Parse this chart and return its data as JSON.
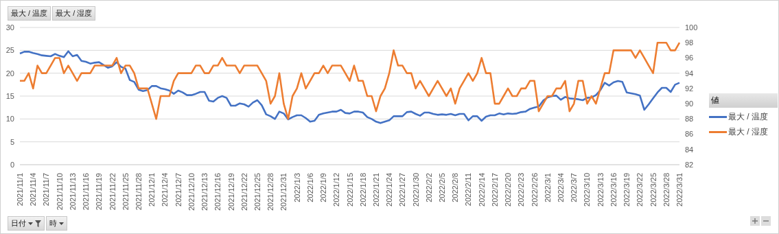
{
  "chart_data": {
    "type": "line",
    "categories": [
      "2021/11/1",
      null,
      null,
      "2021/11/4",
      null,
      null,
      "2021/11/7",
      null,
      null,
      "2021/11/10",
      null,
      null,
      "2021/11/13",
      null,
      null,
      "2021/11/16",
      null,
      null,
      "2021/11/19",
      null,
      null,
      "2021/11/22",
      null,
      null,
      "2021/11/25",
      null,
      null,
      "2021/11/28",
      null,
      null,
      "2021/12/1",
      null,
      null,
      "2021/12/4",
      null,
      null,
      "2021/12/7",
      null,
      null,
      "2021/12/10",
      null,
      null,
      "2021/12/13",
      null,
      null,
      "2021/12/16",
      null,
      null,
      "2021/12/19",
      null,
      null,
      "2021/12/22",
      null,
      null,
      "2021/12/25",
      null,
      null,
      "2021/12/28",
      null,
      null,
      "2021/12/31",
      null,
      null,
      "2022/1/3",
      null,
      null,
      "2022/1/6",
      null,
      null,
      "2022/1/9",
      null,
      null,
      "2022/1/12",
      null,
      null,
      "2022/1/15",
      null,
      null,
      "2022/1/18",
      null,
      null,
      "2022/1/21",
      null,
      null,
      "2022/1/24",
      null,
      null,
      "2022/1/27",
      null,
      null,
      "2022/1/30",
      null,
      null,
      "2022/2/2",
      null,
      null,
      "2022/2/5",
      null,
      null,
      "2022/2/8",
      null,
      null,
      "2022/2/11",
      null,
      null,
      "2022/2/14",
      null,
      null,
      "2022/2/17",
      null,
      null,
      "2022/2/20",
      null,
      null,
      "2022/2/23",
      null,
      null,
      "2022/2/26",
      null,
      null,
      "2022/3/1",
      null,
      null,
      "2022/3/4",
      null,
      null,
      "2022/3/7",
      null,
      null,
      "2022/3/10",
      null,
      null,
      "2022/3/13",
      null,
      null,
      "2022/3/16",
      null,
      null,
      "2022/3/19",
      null,
      null,
      "2022/3/22",
      null,
      null,
      "2022/3/25",
      null,
      null,
      "2022/3/28",
      null,
      null,
      "2022/3/31"
    ],
    "series": [
      {
        "name": "最大 / 温度",
        "color": "#4472c4",
        "values": [
          24.3,
          24.7,
          24.7,
          24.4,
          24.2,
          23.9,
          23.8,
          23.7,
          24.2,
          23.8,
          23.5,
          24.8,
          23.7,
          24.0,
          22.7,
          22.5,
          22.1,
          22.3,
          22.4,
          21.8,
          21.2,
          21.5,
          22.4,
          21.4,
          21.0,
          18.5,
          18.1,
          16.4,
          16.1,
          16.3,
          17.2,
          17.2,
          16.7,
          16.5,
          16.2,
          15.5,
          16.2,
          15.8,
          15.2,
          15.2,
          15.5,
          15.9,
          15.9,
          14.0,
          13.8,
          14.6,
          15.0,
          14.6,
          12.9,
          12.9,
          13.4,
          13.2,
          12.7,
          13.6,
          14.1,
          13.0,
          11.0,
          10.6,
          10.0,
          11.6,
          11.2,
          9.9,
          10.4,
          10.8,
          10.8,
          10.2,
          9.4,
          9.6,
          10.9,
          11.2,
          11.4,
          11.6,
          11.6,
          12.0,
          11.3,
          11.2,
          11.6,
          11.6,
          11.4,
          10.4,
          10.0,
          9.4,
          9.1,
          9.4,
          9.7,
          10.6,
          10.6,
          10.6,
          11.5,
          11.6,
          11.1,
          10.7,
          11.4,
          11.4,
          11.1,
          10.9,
          11.0,
          10.9,
          11.1,
          10.8,
          11.1,
          11.1,
          9.7,
          10.6,
          10.6,
          9.6,
          10.5,
          10.8,
          10.8,
          11.2,
          11.0,
          11.2,
          11.1,
          11.2,
          11.5,
          11.6,
          12.2,
          12.5,
          12.7,
          14.0,
          14.7,
          15.0,
          15.1,
          14.2,
          14.8,
          14.5,
          14.4,
          14.3,
          14.1,
          14.6,
          14.7,
          15.2,
          16.3,
          17.9,
          17.3,
          18.0,
          18.3,
          18.1,
          15.8,
          15.6,
          15.4,
          15.1,
          12.0,
          13.2,
          14.5,
          15.8,
          16.8,
          16.8,
          15.9,
          17.5,
          17.9
        ]
      },
      {
        "name": "最大 / 湿度",
        "color": "#ed7d31",
        "axis": "y2",
        "values": [
          93,
          93,
          94,
          92,
          95,
          94,
          94,
          95,
          96,
          96,
          94,
          95,
          94,
          93,
          94,
          94,
          94,
          95,
          95,
          95,
          95,
          95,
          96,
          94,
          95,
          95,
          94,
          92,
          92,
          92,
          90,
          88,
          91,
          91,
          91,
          93,
          94,
          94,
          94,
          94,
          95,
          95,
          94,
          94,
          95,
          95,
          96,
          95,
          95,
          95,
          94,
          95,
          95,
          95,
          95,
          94,
          93,
          90,
          91,
          94,
          90,
          88,
          91,
          92,
          94,
          92,
          93,
          94,
          94,
          95,
          94,
          95,
          95,
          95,
          94,
          93,
          95,
          93,
          93,
          91,
          91,
          89,
          91,
          92,
          94,
          97,
          95,
          95,
          94,
          94,
          92,
          93,
          92,
          91,
          92,
          93,
          92,
          91,
          92,
          90,
          92,
          93,
          94,
          93,
          94,
          96,
          94,
          94,
          90,
          90,
          91,
          92,
          91,
          91,
          92,
          92,
          93,
          93,
          89,
          90,
          91,
          91,
          92,
          92,
          93,
          89,
          90,
          93,
          93,
          90,
          91,
          90,
          92,
          94,
          94,
          97,
          97,
          97,
          97,
          97,
          96,
          97,
          96,
          95,
          94,
          98,
          98,
          98,
          97,
          97,
          98
        ]
      }
    ],
    "ylim": [
      0,
      30
    ],
    "yticks": [
      0,
      5,
      10,
      15,
      20,
      25,
      30
    ],
    "y2lim": [
      82,
      100
    ],
    "y2ticks": [
      82,
      84,
      86,
      88,
      90,
      92,
      94,
      96,
      98,
      100
    ],
    "grid": "y",
    "legend": "right",
    "legend_title": "値",
    "line_style": "solid",
    "annotations": [
      "最大 / 温度",
      "最大 / 湿度",
      "日付",
      "時"
    ]
  }
}
